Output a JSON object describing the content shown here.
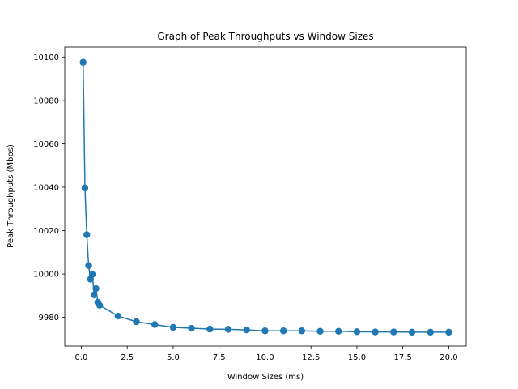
{
  "chart_data": {
    "type": "line",
    "title": "Graph of Peak Throughputs vs Window Sizes",
    "xlabel": "Window Sizes (ms)",
    "ylabel": "Peak Throughputs (Mbps)",
    "xlim": [
      -0.9,
      20.95
    ],
    "ylim": [
      9966.8,
      10104.6
    ],
    "x_ticks": [
      0.0,
      2.5,
      5.0,
      7.5,
      10.0,
      12.5,
      15.0,
      17.5,
      20.0
    ],
    "x_tick_labels": [
      "0.0",
      "2.5",
      "5.0",
      "7.5",
      "10.0",
      "12.5",
      "15.0",
      "17.5",
      "20.0"
    ],
    "y_ticks": [
      9980,
      10000,
      10020,
      10040,
      10060,
      10080,
      10100
    ],
    "y_tick_labels": [
      "9980",
      "10000",
      "10020",
      "10040",
      "10060",
      "10080",
      "10100"
    ],
    "grid": false,
    "marker": "circle",
    "color": "#1f77b4",
    "series": [
      {
        "x": [
          0.1,
          0.2,
          0.3,
          0.4,
          0.5,
          0.6,
          0.7,
          0.8,
          0.9,
          1.0,
          2,
          3,
          4,
          5,
          6,
          7,
          8,
          9,
          10,
          11,
          12,
          13,
          14,
          15,
          16,
          17,
          18,
          19,
          20
        ],
        "y": [
          10097.6,
          10039.7,
          10018.1,
          10003.9,
          9997.6,
          9999.8,
          9990.4,
          9993.3,
          9987.0,
          9985.6,
          9980.6,
          9978.0,
          9976.7,
          9975.4,
          9975.0,
          9974.6,
          9974.5,
          9974.2,
          9973.8,
          9973.8,
          9973.8,
          9973.6,
          9973.6,
          9973.4,
          9973.3,
          9973.3,
          9973.2,
          9973.2,
          9973.2
        ]
      }
    ]
  }
}
